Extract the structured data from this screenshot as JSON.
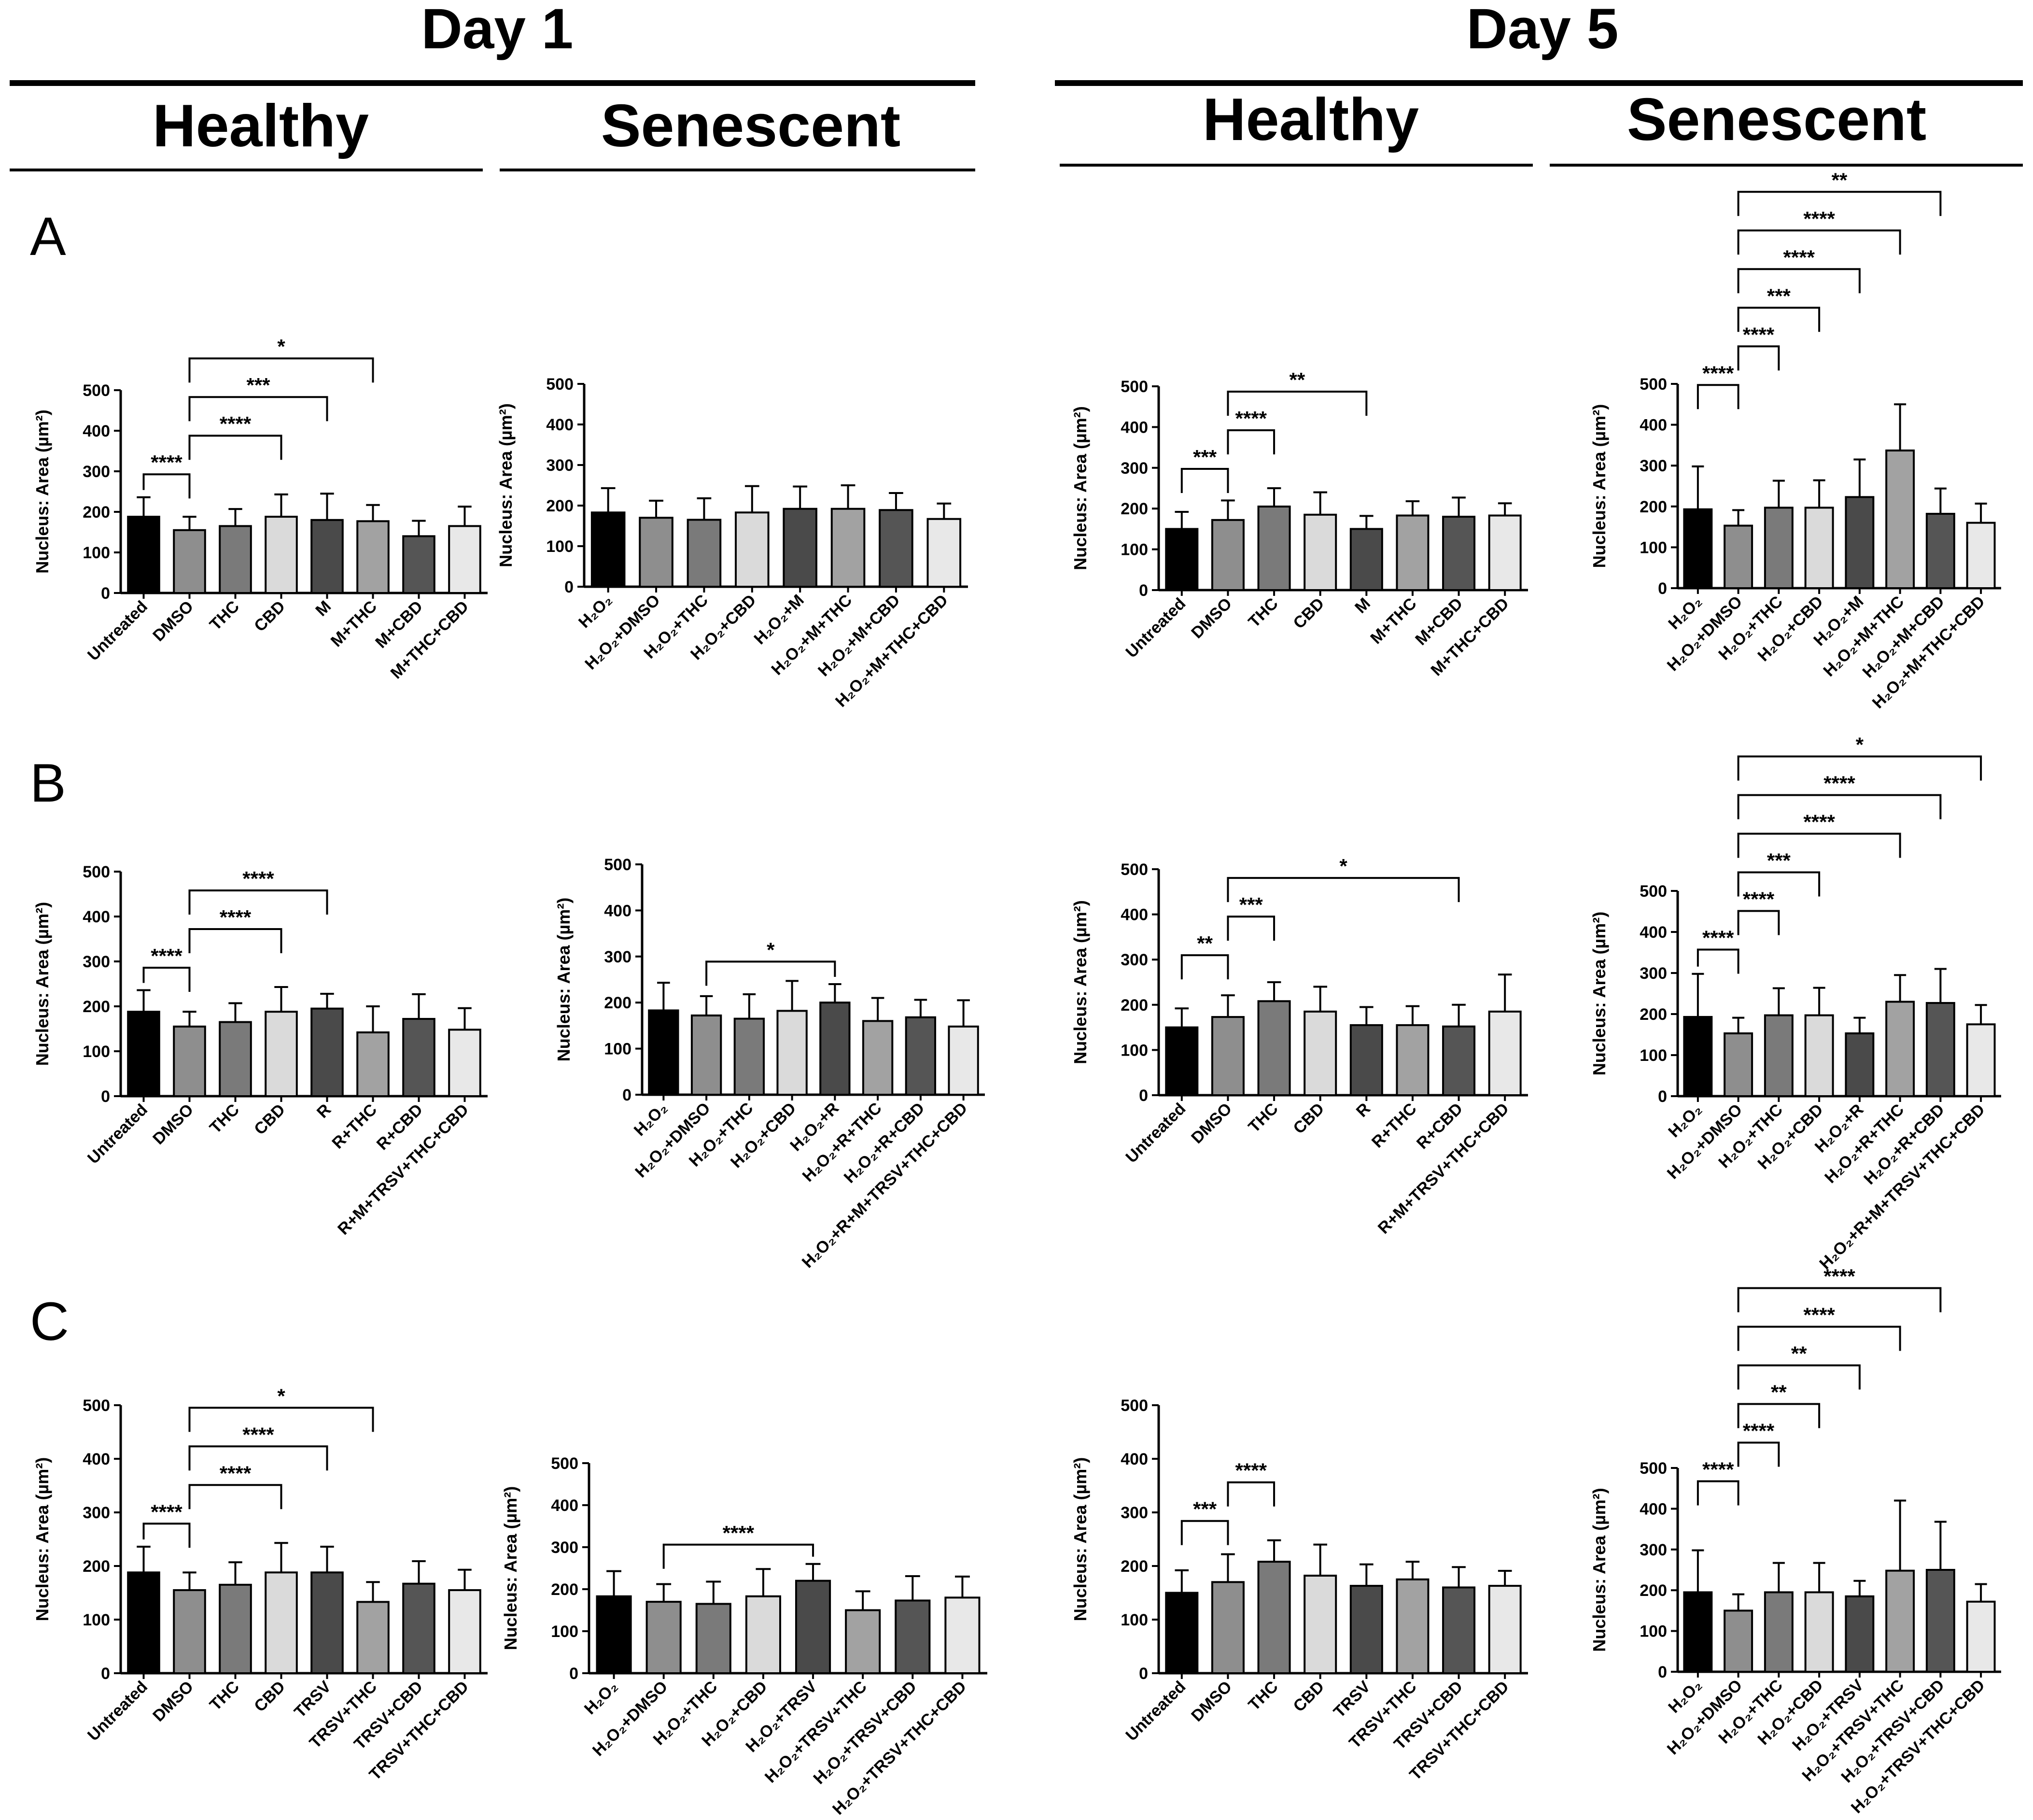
{
  "headers": {
    "day1": "Day 1",
    "day5": "Day 5",
    "healthy": "Healthy",
    "senescent": "Senescent"
  },
  "rows": [
    "A",
    "B",
    "C"
  ],
  "chart_data": [
    {
      "id": "A-d1-healthy",
      "type": "bar",
      "row": "A",
      "day": "Day 1",
      "condition": "Healthy",
      "ylabel": "Nucleus: Area (µm²)",
      "ylim": [
        0,
        500
      ],
      "yticks": [
        0,
        100,
        200,
        300,
        400,
        500
      ],
      "categories": [
        "Untreated",
        "DMSO",
        "THC",
        "CBD",
        "M",
        "M+THC",
        "M+CBD",
        "M+THC+CBD"
      ],
      "values": [
        188,
        155,
        165,
        188,
        180,
        177,
        140,
        165
      ],
      "errors": [
        48,
        33,
        42,
        55,
        65,
        40,
        38,
        48
      ],
      "comparisons": [
        {
          "a": 0,
          "b": 1,
          "label": "****"
        },
        {
          "a": 1,
          "b": 3,
          "label": "****"
        },
        {
          "a": 1,
          "b": 4,
          "label": "***"
        },
        {
          "a": 1,
          "b": 5,
          "label": "*"
        }
      ]
    },
    {
      "id": "A-d1-senescent",
      "type": "bar",
      "row": "A",
      "day": "Day 1",
      "condition": "Senescent",
      "ylabel": "Nucleus: Area (µm²)",
      "ylim": [
        0,
        500
      ],
      "yticks": [
        0,
        100,
        200,
        300,
        400,
        500
      ],
      "categories": [
        "H₂O₂",
        "H₂O₂+DMSO",
        "H₂O₂+THC",
        "H₂O₂+CBD",
        "H₂O₂+M",
        "H₂O₂+M+THC",
        "H₂O₂+M+CBD",
        "H₂O₂+M+THC+CBD"
      ],
      "values": [
        183,
        170,
        165,
        183,
        192,
        192,
        189,
        167
      ],
      "errors": [
        60,
        42,
        53,
        65,
        55,
        58,
        42,
        38
      ],
      "comparisons": []
    },
    {
      "id": "A-d5-healthy",
      "type": "bar",
      "row": "A",
      "day": "Day 5",
      "condition": "Healthy",
      "ylabel": "Nucleus: Area (µm²)",
      "ylim": [
        0,
        500
      ],
      "yticks": [
        0,
        100,
        200,
        300,
        400,
        500
      ],
      "categories": [
        "Untreated",
        "DMSO",
        "THC",
        "CBD",
        "M",
        "M+THC",
        "M+CBD",
        "M+THC+CBD"
      ],
      "values": [
        150,
        172,
        205,
        185,
        150,
        183,
        180,
        183
      ],
      "errors": [
        42,
        48,
        45,
        55,
        32,
        35,
        47,
        30
      ],
      "comparisons": [
        {
          "a": 0,
          "b": 1,
          "label": "***"
        },
        {
          "a": 1,
          "b": 2,
          "label": "****"
        },
        {
          "a": 1,
          "b": 4,
          "label": "**"
        }
      ]
    },
    {
      "id": "A-d5-senescent",
      "type": "bar",
      "row": "A",
      "day": "Day 5",
      "condition": "Senescent",
      "ylabel": "Nucleus: Area (µm²)",
      "ylim": [
        0,
        500
      ],
      "yticks": [
        0,
        100,
        200,
        300,
        400,
        500
      ],
      "categories": [
        "H₂O₂",
        "H₂O₂+DMSO",
        "H₂O₂+THC",
        "H₂O₂+CBD",
        "H₂O₂+M",
        "H₂O₂+M+THC",
        "H₂O₂+M+CBD",
        "H₂O₂+M+THC+CBD"
      ],
      "values": [
        193,
        153,
        197,
        197,
        223,
        337,
        182,
        160
      ],
      "errors": [
        105,
        38,
        66,
        67,
        92,
        113,
        62,
        47
      ],
      "comparisons": [
        {
          "a": 0,
          "b": 1,
          "label": "****"
        },
        {
          "a": 1,
          "b": 2,
          "label": "****"
        },
        {
          "a": 1,
          "b": 3,
          "label": "***"
        },
        {
          "a": 1,
          "b": 4,
          "label": "****"
        },
        {
          "a": 1,
          "b": 5,
          "label": "****"
        },
        {
          "a": 1,
          "b": 6,
          "label": "**"
        }
      ]
    },
    {
      "id": "B-d1-healthy",
      "type": "bar",
      "row": "B",
      "day": "Day 1",
      "condition": "Healthy",
      "ylabel": "Nucleus: Area (µm²)",
      "ylim": [
        0,
        500
      ],
      "yticks": [
        0,
        100,
        200,
        300,
        400,
        500
      ],
      "categories": [
        "Untreated",
        "DMSO",
        "THC",
        "CBD",
        "R",
        "R+THC",
        "R+CBD",
        "R+M+TRSV+THC+CBD"
      ],
      "values": [
        188,
        155,
        165,
        188,
        195,
        142,
        172,
        148
      ],
      "errors": [
        48,
        33,
        42,
        55,
        33,
        58,
        55,
        48
      ],
      "comparisons": [
        {
          "a": 0,
          "b": 1,
          "label": "****"
        },
        {
          "a": 1,
          "b": 3,
          "label": "****"
        },
        {
          "a": 1,
          "b": 4,
          "label": "****"
        }
      ]
    },
    {
      "id": "B-d1-senescent",
      "type": "bar",
      "row": "B",
      "day": "Day 1",
      "condition": "Senescent",
      "ylabel": "Nucleus: Area (µm²)",
      "ylim": [
        0,
        500
      ],
      "yticks": [
        0,
        100,
        200,
        300,
        400,
        500
      ],
      "categories": [
        "H₂O₂",
        "H₂O₂+DMSO",
        "H₂O₂+THC",
        "H₂O₂+CBD",
        "H₂O₂+R",
        "H₂O₂+R+THC",
        "H₂O₂+R+CBD",
        "H₂O₂+R+M+TRSV+THC+CBD"
      ],
      "values": [
        183,
        172,
        165,
        182,
        200,
        160,
        168,
        148
      ],
      "errors": [
        60,
        42,
        53,
        65,
        40,
        50,
        38,
        57
      ],
      "comparisons": [
        {
          "a": 1,
          "b": 4,
          "label": "*"
        }
      ]
    },
    {
      "id": "B-d5-healthy",
      "type": "bar",
      "row": "B",
      "day": "Day 5",
      "condition": "Healthy",
      "ylabel": "Nucleus: Area (µm²)",
      "ylim": [
        0,
        500
      ],
      "yticks": [
        0,
        100,
        200,
        300,
        400,
        500
      ],
      "categories": [
        "Untreated",
        "DMSO",
        "THC",
        "CBD",
        "R",
        "R+THC",
        "R+CBD",
        "R+M+TRSV+THC+CBD"
      ],
      "values": [
        150,
        173,
        208,
        185,
        155,
        155,
        152,
        185
      ],
      "errors": [
        42,
        48,
        42,
        55,
        40,
        42,
        48,
        82
      ],
      "comparisons": [
        {
          "a": 0,
          "b": 1,
          "label": "**"
        },
        {
          "a": 1,
          "b": 2,
          "label": "***"
        },
        {
          "a": 1,
          "b": 6,
          "label": "*"
        }
      ]
    },
    {
      "id": "B-d5-senescent",
      "type": "bar",
      "row": "B",
      "day": "Day 5",
      "condition": "Senescent",
      "ylabel": "Nucleus: Area (µm²)",
      "ylim": [
        0,
        500
      ],
      "yticks": [
        0,
        100,
        200,
        300,
        400,
        500
      ],
      "categories": [
        "H₂O₂",
        "H₂O₂+DMSO",
        "H₂O₂+THC",
        "H₂O₂+CBD",
        "H₂O₂+R",
        "H₂O₂+R+THC",
        "H₂O₂+R+CBD",
        "H₂O₂+R+M+TRSV+THC+CBD"
      ],
      "values": [
        193,
        153,
        197,
        197,
        153,
        230,
        227,
        175
      ],
      "errors": [
        105,
        38,
        66,
        67,
        38,
        65,
        83,
        47
      ],
      "comparisons": [
        {
          "a": 0,
          "b": 1,
          "label": "****"
        },
        {
          "a": 1,
          "b": 2,
          "label": "****"
        },
        {
          "a": 1,
          "b": 3,
          "label": "***"
        },
        {
          "a": 1,
          "b": 5,
          "label": "****"
        },
        {
          "a": 1,
          "b": 6,
          "label": "****"
        },
        {
          "a": 1,
          "b": 7,
          "label": "*"
        }
      ]
    },
    {
      "id": "C-d1-healthy",
      "type": "bar",
      "row": "C",
      "day": "Day 1",
      "condition": "Healthy",
      "ylabel": "Nucleus: Area (µm²)",
      "ylim": [
        0,
        500
      ],
      "yticks": [
        0,
        100,
        200,
        300,
        400,
        500
      ],
      "categories": [
        "Untreated",
        "DMSO",
        "THC",
        "CBD",
        "TRSV",
        "TRSV+THC",
        "TRSV+CBD",
        "TRSV+THC+CBD"
      ],
      "values": [
        188,
        155,
        165,
        188,
        188,
        133,
        167,
        155
      ],
      "errors": [
        48,
        33,
        42,
        55,
        48,
        37,
        42,
        38
      ],
      "comparisons": [
        {
          "a": 0,
          "b": 1,
          "label": "****"
        },
        {
          "a": 1,
          "b": 3,
          "label": "****"
        },
        {
          "a": 1,
          "b": 4,
          "label": "****"
        },
        {
          "a": 1,
          "b": 5,
          "label": "*"
        }
      ]
    },
    {
      "id": "C-d1-senescent",
      "type": "bar",
      "row": "C",
      "day": "Day 1",
      "condition": "Senescent",
      "ylabel": "Nucleus: Area (µm²)",
      "ylim": [
        0,
        500
      ],
      "yticks": [
        0,
        100,
        200,
        300,
        400,
        500
      ],
      "categories": [
        "H₂O₂",
        "H₂O₂+DMSO",
        "H₂O₂+THC",
        "H₂O₂+CBD",
        "H₂O₂+TRSV",
        "H₂O₂+TRSV+THC",
        "H₂O₂+TRSV+CBD",
        "H₂O₂+TRSV+THC+CBD"
      ],
      "values": [
        183,
        170,
        165,
        183,
        220,
        150,
        173,
        180
      ],
      "errors": [
        60,
        42,
        53,
        65,
        40,
        45,
        58,
        50
      ],
      "comparisons": [
        {
          "a": 1,
          "b": 4,
          "label": "****"
        }
      ]
    },
    {
      "id": "C-d5-healthy",
      "type": "bar",
      "row": "C",
      "day": "Day 5",
      "condition": "Healthy",
      "ylabel": "Nucleus: Area (µm²)",
      "ylim": [
        0,
        500
      ],
      "yticks": [
        0,
        100,
        200,
        300,
        400,
        500
      ],
      "categories": [
        "Untreated",
        "DMSO",
        "THC",
        "CBD",
        "TRSV",
        "TRSV+THC",
        "TRSV+CBD",
        "TRSV+THC+CBD"
      ],
      "values": [
        150,
        170,
        208,
        182,
        163,
        175,
        160,
        163
      ],
      "errors": [
        42,
        52,
        40,
        58,
        40,
        33,
        38,
        28
      ],
      "comparisons": [
        {
          "a": 0,
          "b": 1,
          "label": "***"
        },
        {
          "a": 1,
          "b": 2,
          "label": "****"
        }
      ]
    },
    {
      "id": "C-d5-senescent",
      "type": "bar",
      "row": "C",
      "day": "Day 5",
      "condition": "Senescent",
      "ylabel": "Nucleus: Area (µm²)",
      "ylim": [
        0,
        500
      ],
      "yticks": [
        0,
        100,
        200,
        300,
        400,
        500
      ],
      "categories": [
        "H₂O₂",
        "H₂O₂+DMSO",
        "H₂O₂+THC",
        "H₂O₂+CBD",
        "H₂O₂+TRSV",
        "H₂O₂+TRSV+THC",
        "H₂O₂+TRSV+CBD",
        "H₂O₂+TRSV+THC+CBD"
      ],
      "values": [
        195,
        150,
        195,
        195,
        185,
        248,
        250,
        172
      ],
      "errors": [
        103,
        40,
        72,
        72,
        38,
        172,
        118,
        43
      ],
      "comparisons": [
        {
          "a": 0,
          "b": 1,
          "label": "****"
        },
        {
          "a": 1,
          "b": 2,
          "label": "****"
        },
        {
          "a": 1,
          "b": 3,
          "label": "**"
        },
        {
          "a": 1,
          "b": 4,
          "label": "**"
        },
        {
          "a": 1,
          "b": 5,
          "label": "****"
        },
        {
          "a": 1,
          "b": 6,
          "label": "****"
        }
      ]
    }
  ],
  "bar_colors": [
    "#000000",
    "#8e8e8e",
    "#7a7a7a",
    "#dadada",
    "#4a4a4a",
    "#a2a2a2",
    "#555555",
    "#e8e8e8"
  ]
}
